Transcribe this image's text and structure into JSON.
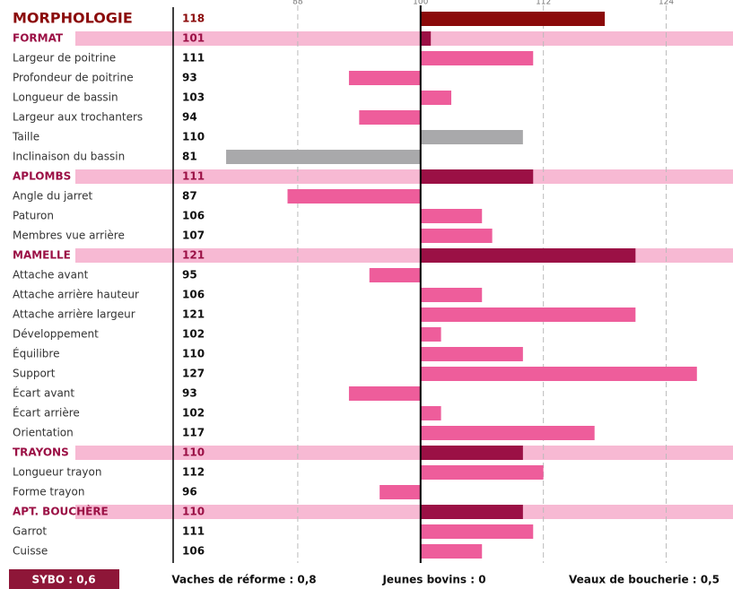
{
  "chart_data": {
    "type": "bar",
    "orientation": "horizontal",
    "categories": [
      "MORPHOLOGIE",
      "FORMAT",
      "Largeur de poitrine",
      "Profondeur de poitrine",
      "Longueur de bassin",
      "Largeur aux trochanters",
      "Taille",
      "Inclinaison du bassin",
      "APLOMBS",
      "Angle du jarret",
      "Paturon",
      "Membres vue arrière",
      "MAMELLE",
      "Attache avant",
      "Attache arrière hauteur",
      "Attache arrière largeur",
      "Développement",
      "Équilibre",
      "Support",
      "Écart avant",
      "Écart arrière",
      "Orientation",
      "TRAYONS",
      "Longueur trayon",
      "Forme trayon",
      "APT. BOUCHÈRE",
      "Garrot",
      "Cuisse"
    ],
    "values": [
      118,
      101,
      111,
      93,
      103,
      94,
      110,
      81,
      111,
      87,
      106,
      107,
      121,
      95,
      106,
      121,
      102,
      110,
      127,
      93,
      102,
      117,
      110,
      112,
      96,
      110,
      111,
      106
    ],
    "colors": [
      "#8b0a0a",
      "#9b1045",
      "#ee5d9b",
      "#ee5d9b",
      "#ee5d9b",
      "#ee5d9b",
      "#a9a9ab",
      "#a9a9ab",
      "#9b1045",
      "#ee5d9b",
      "#ee5d9b",
      "#ee5d9b",
      "#9b1045",
      "#ee5d9b",
      "#ee5d9b",
      "#ee5d9b",
      "#ee5d9b",
      "#ee5d9b",
      "#ee5d9b",
      "#ee5d9b",
      "#ee5d9b",
      "#ee5d9b",
      "#9b1045",
      "#ee5d9b",
      "#ee5d9b",
      "#9b1045",
      "#ee5d9b",
      "#ee5d9b"
    ],
    "base": 100,
    "xlim": [
      76,
      130
    ],
    "xticks": [
      88,
      100,
      112,
      124
    ],
    "grid": true,
    "footer": [
      "SYBO : 0,6",
      "Vaches de réforme : 0,8",
      "Jeunes bovins : 0",
      "Veaux de boucherie : 0,5"
    ]
  }
}
